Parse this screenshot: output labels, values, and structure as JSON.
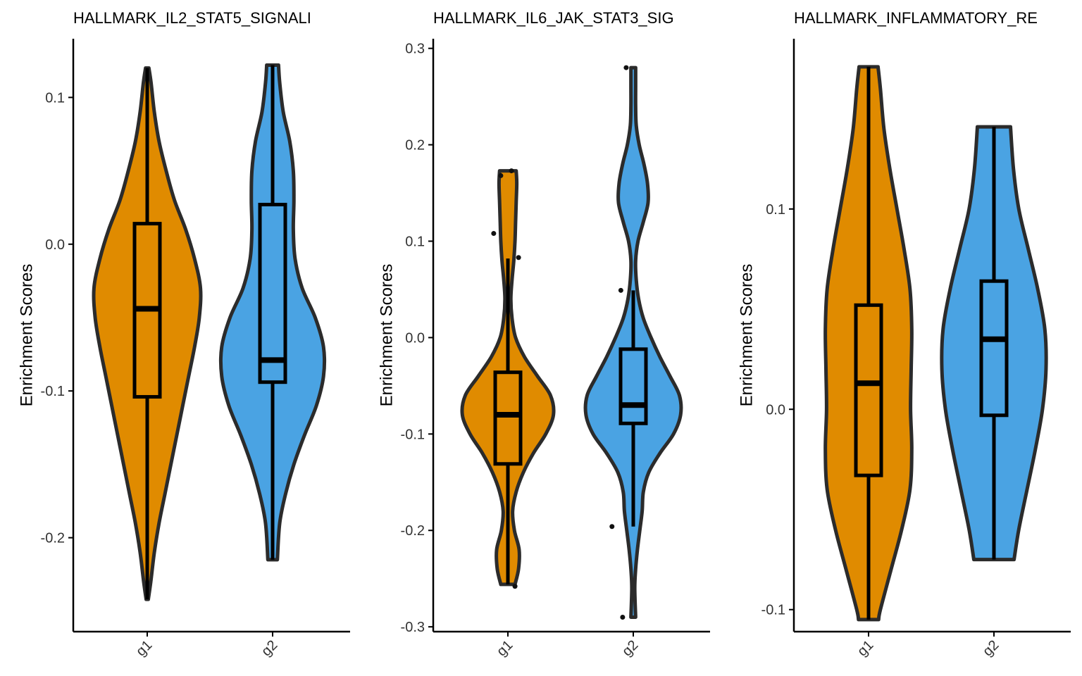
{
  "chart_data": [
    {
      "type": "violin",
      "title": "HALLMARK_IL2_STAT5_SIGNALI",
      "ylabel": "Enrichment Scores",
      "categories": [
        "g1",
        "g2"
      ],
      "ylim": [
        -0.264,
        0.14
      ],
      "yticks": [
        0.1,
        0.0,
        -0.1,
        -0.2
      ],
      "ytick_labels": [
        "0.1",
        "0.0",
        "-0.1",
        "-0.2"
      ],
      "groups": [
        {
          "name": "g1",
          "color": "#E08B00",
          "box": {
            "whisker_low": -0.242,
            "q1": -0.104,
            "median": -0.044,
            "q3": 0.014,
            "whisker_high": 0.12
          },
          "outliers": [],
          "density": [
            [
              0.12,
              0.028
            ],
            [
              0.11,
              0.065
            ],
            [
              0.09,
              0.12
            ],
            [
              0.07,
              0.2
            ],
            [
              0.05,
              0.32
            ],
            [
              0.03,
              0.46
            ],
            [
              0.01,
              0.65
            ],
            [
              -0.01,
              0.8
            ],
            [
              -0.03,
              0.9
            ],
            [
              -0.05,
              0.88
            ],
            [
              -0.07,
              0.8
            ],
            [
              -0.09,
              0.7
            ],
            [
              -0.11,
              0.6
            ],
            [
              -0.13,
              0.5
            ],
            [
              -0.15,
              0.4
            ],
            [
              -0.17,
              0.3
            ],
            [
              -0.19,
              0.2
            ],
            [
              -0.21,
              0.12
            ],
            [
              -0.23,
              0.06
            ],
            [
              -0.242,
              0.018
            ]
          ]
        },
        {
          "name": "g2",
          "color": "#4AA3E3",
          "box": {
            "whisker_low": -0.215,
            "q1": -0.094,
            "median": -0.079,
            "q3": 0.027,
            "whisker_high": 0.122
          },
          "outliers": [],
          "density": [
            [
              0.122,
              0.1
            ],
            [
              0.11,
              0.12
            ],
            [
              0.09,
              0.18
            ],
            [
              0.07,
              0.29
            ],
            [
              0.05,
              0.35
            ],
            [
              0.03,
              0.36
            ],
            [
              0.01,
              0.35
            ],
            [
              -0.01,
              0.38
            ],
            [
              -0.03,
              0.5
            ],
            [
              -0.05,
              0.72
            ],
            [
              -0.07,
              0.86
            ],
            [
              -0.09,
              0.86
            ],
            [
              -0.11,
              0.74
            ],
            [
              -0.13,
              0.54
            ],
            [
              -0.15,
              0.36
            ],
            [
              -0.17,
              0.22
            ],
            [
              -0.19,
              0.12
            ],
            [
              -0.215,
              0.08
            ]
          ]
        }
      ]
    },
    {
      "type": "violin",
      "title": "HALLMARK_IL6_JAK_STAT3_SIG",
      "ylabel": "Enrichment Scores",
      "categories": [
        "g1",
        "g2"
      ],
      "ylim": [
        -0.305,
        0.31
      ],
      "yticks": [
        0.3,
        0.2,
        0.1,
        0.0,
        -0.1,
        -0.2,
        -0.3
      ],
      "ytick_labels": [
        "0.3",
        "0.2",
        "0.1",
        "0.0",
        "-0.1",
        "-0.2",
        "-0.3"
      ],
      "groups": [
        {
          "name": "g1",
          "color": "#E08B00",
          "box": {
            "whisker_low": -0.256,
            "q1": -0.131,
            "median": -0.08,
            "q3": -0.036,
            "whisker_high": 0.082
          },
          "outliers": [
            [
              -0.04,
              0.168
            ],
            [
              0.02,
              0.173
            ],
            [
              -0.08,
              0.108
            ],
            [
              0.06,
              0.083
            ],
            [
              0.04,
              -0.258
            ]
          ],
          "density": [
            [
              0.173,
              0.14
            ],
            [
              0.16,
              0.15
            ],
            [
              0.14,
              0.14
            ],
            [
              0.12,
              0.13
            ],
            [
              0.1,
              0.12
            ],
            [
              0.08,
              0.1
            ],
            [
              0.06,
              0.07
            ],
            [
              0.04,
              0.05
            ],
            [
              0.02,
              0.07
            ],
            [
              0.0,
              0.13
            ],
            [
              -0.02,
              0.28
            ],
            [
              -0.04,
              0.5
            ],
            [
              -0.06,
              0.72
            ],
            [
              -0.08,
              0.77
            ],
            [
              -0.1,
              0.64
            ],
            [
              -0.12,
              0.43
            ],
            [
              -0.14,
              0.26
            ],
            [
              -0.16,
              0.14
            ],
            [
              -0.18,
              0.08
            ],
            [
              -0.2,
              0.11
            ],
            [
              -0.22,
              0.19
            ],
            [
              -0.24,
              0.18
            ],
            [
              -0.256,
              0.12
            ]
          ]
        },
        {
          "name": "g2",
          "color": "#4AA3E3",
          "box": {
            "whisker_low": -0.196,
            "q1": -0.089,
            "median": -0.07,
            "q3": -0.012,
            "whisker_high": 0.049
          },
          "outliers": [
            [
              -0.04,
              0.28
            ],
            [
              -0.07,
              0.049
            ],
            [
              -0.12,
              -0.196
            ],
            [
              -0.06,
              -0.29
            ]
          ],
          "density": [
            [
              0.28,
              0.04
            ],
            [
              0.26,
              0.04
            ],
            [
              0.24,
              0.04
            ],
            [
              0.22,
              0.05
            ],
            [
              0.2,
              0.1
            ],
            [
              0.18,
              0.18
            ],
            [
              0.16,
              0.24
            ],
            [
              0.14,
              0.25
            ],
            [
              0.12,
              0.17
            ],
            [
              0.1,
              0.08
            ],
            [
              0.08,
              0.04
            ],
            [
              0.06,
              0.05
            ],
            [
              0.04,
              0.09
            ],
            [
              0.02,
              0.17
            ],
            [
              0.0,
              0.3
            ],
            [
              -0.02,
              0.45
            ],
            [
              -0.04,
              0.62
            ],
            [
              -0.06,
              0.78
            ],
            [
              -0.08,
              0.8
            ],
            [
              -0.1,
              0.68
            ],
            [
              -0.12,
              0.45
            ],
            [
              -0.14,
              0.26
            ],
            [
              -0.16,
              0.17
            ],
            [
              -0.18,
              0.15
            ],
            [
              -0.2,
              0.11
            ],
            [
              -0.22,
              0.07
            ],
            [
              -0.24,
              0.04
            ],
            [
              -0.26,
              0.025
            ],
            [
              -0.29,
              0.04
            ]
          ]
        }
      ]
    },
    {
      "type": "violin",
      "title": "HALLMARK_INFLAMMATORY_RE",
      "ylabel": "Enrichment Scores",
      "categories": [
        "g1",
        "g2"
      ],
      "ylim": [
        -0.111,
        0.185
      ],
      "yticks": [
        0.1,
        0.0,
        -0.1
      ],
      "ytick_labels": [
        "0.1",
        "0.0",
        "-0.1"
      ],
      "groups": [
        {
          "name": "g1",
          "color": "#E08B00",
          "box": {
            "whisker_low": -0.105,
            "q1": -0.033,
            "median": 0.013,
            "q3": 0.052,
            "whisker_high": 0.171
          },
          "outliers": [],
          "density": [
            [
              0.171,
              0.16
            ],
            [
              0.16,
              0.2
            ],
            [
              0.14,
              0.26
            ],
            [
              0.12,
              0.36
            ],
            [
              0.1,
              0.48
            ],
            [
              0.08,
              0.6
            ],
            [
              0.06,
              0.7
            ],
            [
              0.04,
              0.73
            ],
            [
              0.02,
              0.72
            ],
            [
              0.0,
              0.71
            ],
            [
              -0.02,
              0.73
            ],
            [
              -0.04,
              0.7
            ],
            [
              -0.06,
              0.56
            ],
            [
              -0.08,
              0.38
            ],
            [
              -0.1,
              0.2
            ],
            [
              -0.105,
              0.17
            ]
          ]
        },
        {
          "name": "g2",
          "color": "#4AA3E3",
          "box": {
            "whisker_low": -0.075,
            "q1": -0.003,
            "median": 0.035,
            "q3": 0.064,
            "whisker_high": 0.141
          },
          "outliers": [],
          "density": [
            [
              0.141,
              0.28
            ],
            [
              0.12,
              0.33
            ],
            [
              0.1,
              0.42
            ],
            [
              0.08,
              0.58
            ],
            [
              0.06,
              0.74
            ],
            [
              0.04,
              0.86
            ],
            [
              0.02,
              0.88
            ],
            [
              0.0,
              0.82
            ],
            [
              -0.02,
              0.7
            ],
            [
              -0.04,
              0.56
            ],
            [
              -0.06,
              0.42
            ],
            [
              -0.075,
              0.34
            ]
          ]
        }
      ]
    }
  ]
}
